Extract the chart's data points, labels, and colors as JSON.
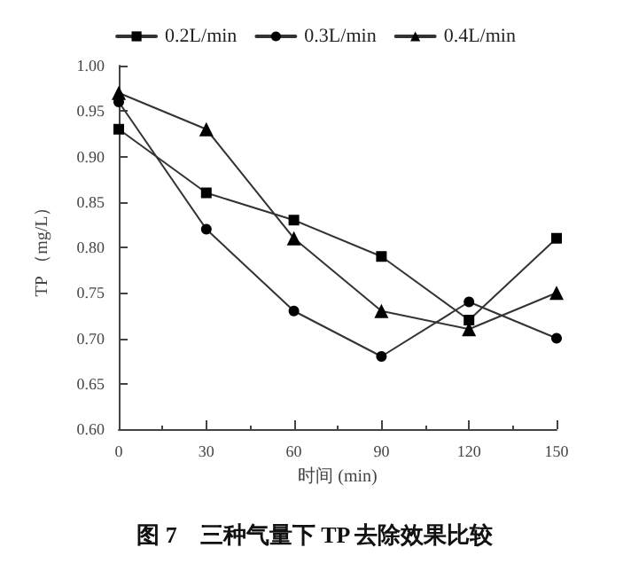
{
  "chart_data": {
    "type": "line",
    "xlabel": "时间 (min)",
    "ylabel": "TP （mg/L）",
    "x": [
      0,
      30,
      60,
      90,
      120,
      150
    ],
    "series": [
      {
        "name": "0.2L/min",
        "color": "#333333",
        "marker": "square",
        "values": [
          0.93,
          0.86,
          0.83,
          0.79,
          0.72,
          0.81
        ]
      },
      {
        "name": "0.3L/min",
        "color": "#333333",
        "marker": "circle",
        "values": [
          0.96,
          0.82,
          0.73,
          0.68,
          0.74,
          0.7
        ]
      },
      {
        "name": "0.4L/min",
        "color": "#333333",
        "marker": "triangle",
        "values": [
          0.97,
          0.93,
          0.81,
          0.73,
          0.71,
          0.75
        ]
      }
    ],
    "xlim": [
      0,
      150
    ],
    "xticks": [
      0,
      30,
      60,
      90,
      120,
      150
    ],
    "ylim": [
      0.6,
      1.0
    ],
    "yticks": [
      {
        "value": 0.6,
        "label": "0.60"
      },
      0.65,
      {
        "value": 0.7,
        "label": "0.70"
      },
      0.75,
      {
        "value": 0.8,
        "label": "0.80"
      },
      0.85,
      {
        "value": 0.9,
        "label": "0.90"
      },
      0.95,
      {
        "value": 1.0,
        "label": "1.00"
      }
    ],
    "grid": false,
    "legend": "top",
    "line_style": "solid",
    "annotations": [
      "图 7　三种气量下 TP 去除效果比较"
    ]
  }
}
